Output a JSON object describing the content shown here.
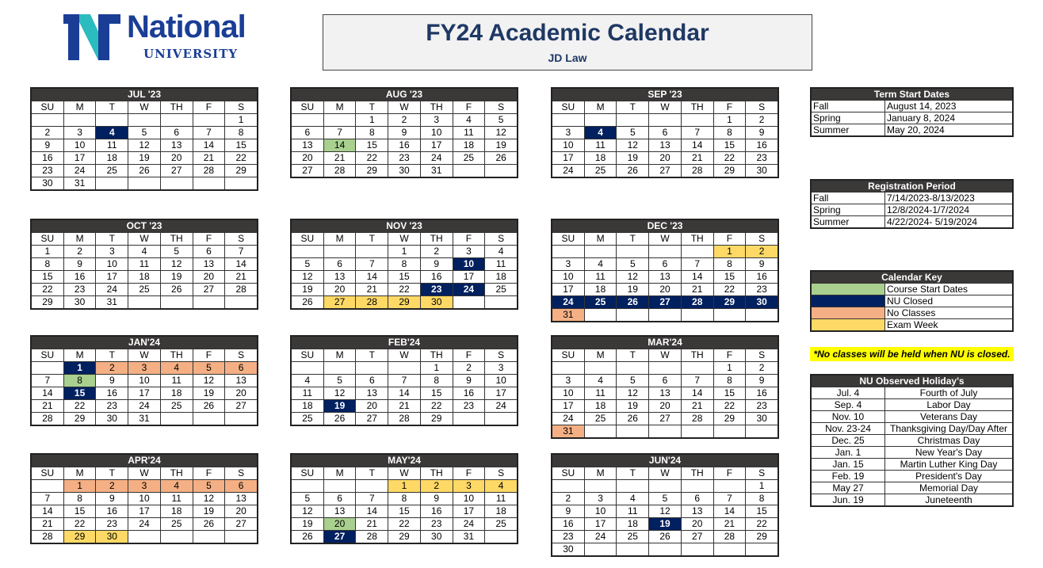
{
  "logo": {
    "word": "National",
    "sub": "UNIVERSITY",
    "colors": {
      "primary": "#1a3e96",
      "accent": "#2bbcc0"
    }
  },
  "title": "FY24 Academic Calendar",
  "subtitle": "JD Law",
  "weekdays": [
    "SU",
    "M",
    "T",
    "W",
    "TH",
    "F",
    "S"
  ],
  "colors": {
    "header": "#3b3838",
    "navy": "#002060",
    "green": "#a9d08e",
    "orange": "#f4b084",
    "yellow": "#ffd966"
  },
  "months": [
    {
      "label": "JUL '23",
      "start": 6,
      "days": 31,
      "hl": {
        "4": "navy"
      }
    },
    {
      "label": "AUG '23",
      "start": 2,
      "days": 31,
      "hl": {
        "14": "green"
      }
    },
    {
      "label": "SEP '23",
      "start": 5,
      "days": 30,
      "hl": {
        "4": "navy"
      }
    },
    {
      "label": "OCT '23",
      "start": 0,
      "days": 31,
      "hl": {}
    },
    {
      "label": "NOV '23",
      "start": 3,
      "days": 30,
      "hl": {
        "10": "navy",
        "23": "navy",
        "24": "navy",
        "27": "yellow",
        "28": "yellow",
        "29": "yellow",
        "30": "yellow"
      }
    },
    {
      "label": "DEC '23",
      "start": 5,
      "days": 31,
      "hl": {
        "1": "yellow",
        "2": "yellow",
        "24": "navy",
        "25": "navy",
        "26": "navy",
        "27": "navy",
        "28": "navy",
        "29": "navy",
        "30": "navy",
        "31": "orange"
      }
    },
    {
      "label": "JAN'24",
      "start": 1,
      "days": 31,
      "hl": {
        "1": "navy",
        "2": "orange",
        "3": "orange",
        "4": "orange",
        "5": "orange",
        "6": "orange",
        "8": "green",
        "15": "navy"
      }
    },
    {
      "label": "FEB'24",
      "start": 4,
      "days": 29,
      "hl": {
        "19": "navy"
      }
    },
    {
      "label": "MAR'24",
      "start": 5,
      "days": 31,
      "hl": {
        "31": "orange"
      }
    },
    {
      "label": "APR'24",
      "start": 1,
      "days": 30,
      "hl": {
        "1": "orange",
        "2": "orange",
        "3": "orange",
        "4": "orange",
        "5": "orange",
        "6": "orange",
        "29": "yellow",
        "30": "yellow"
      }
    },
    {
      "label": "MAY'24",
      "start": 3,
      "days": 31,
      "hl": {
        "1": "yellow",
        "2": "yellow",
        "3": "yellow",
        "4": "yellow",
        "20": "green",
        "27": "navy"
      }
    },
    {
      "label": "JUN'24",
      "start": 6,
      "days": 30,
      "hl": {
        "19": "navy"
      }
    }
  ],
  "term_start": {
    "title": "Term Start Dates",
    "rows": [
      [
        "Fall",
        "August 14, 2023"
      ],
      [
        "Spring",
        "January 8, 2024"
      ],
      [
        "Summer",
        "May 20, 2024"
      ]
    ]
  },
  "registration": {
    "title": "Registration Period",
    "rows": [
      [
        "Fall",
        "7/14/2023-8/13/2023"
      ],
      [
        "Spring",
        "12/8/2024-1/7/2024"
      ],
      [
        "Summer",
        "4/22/2024- 5/19/2024"
      ]
    ]
  },
  "key": {
    "title": "Calendar Key",
    "rows": [
      [
        "green",
        "Course Start Dates"
      ],
      [
        "navy",
        "NU Closed"
      ],
      [
        "orange",
        "No Classes"
      ],
      [
        "yellow",
        "Exam Week"
      ]
    ]
  },
  "note": "*No classes will be held when NU is closed.",
  "holidays": {
    "title": "NU Observed Holiday's",
    "rows": [
      [
        "Jul. 4",
        "Fourth of July"
      ],
      [
        "Sep. 4",
        "Labor Day"
      ],
      [
        "Nov. 10",
        "Veterans Day"
      ],
      [
        "Nov. 23-24",
        "Thanksgiving Day/Day After"
      ],
      [
        "Dec. 25",
        "Christmas Day"
      ],
      [
        "Jan. 1",
        "New Year's Day"
      ],
      [
        "Jan. 15",
        "Martin Luther King Day"
      ],
      [
        "Feb. 19",
        "President's Day"
      ],
      [
        "May 27",
        "Memorial Day"
      ],
      [
        "Jun. 19",
        "Juneteenth"
      ]
    ]
  }
}
